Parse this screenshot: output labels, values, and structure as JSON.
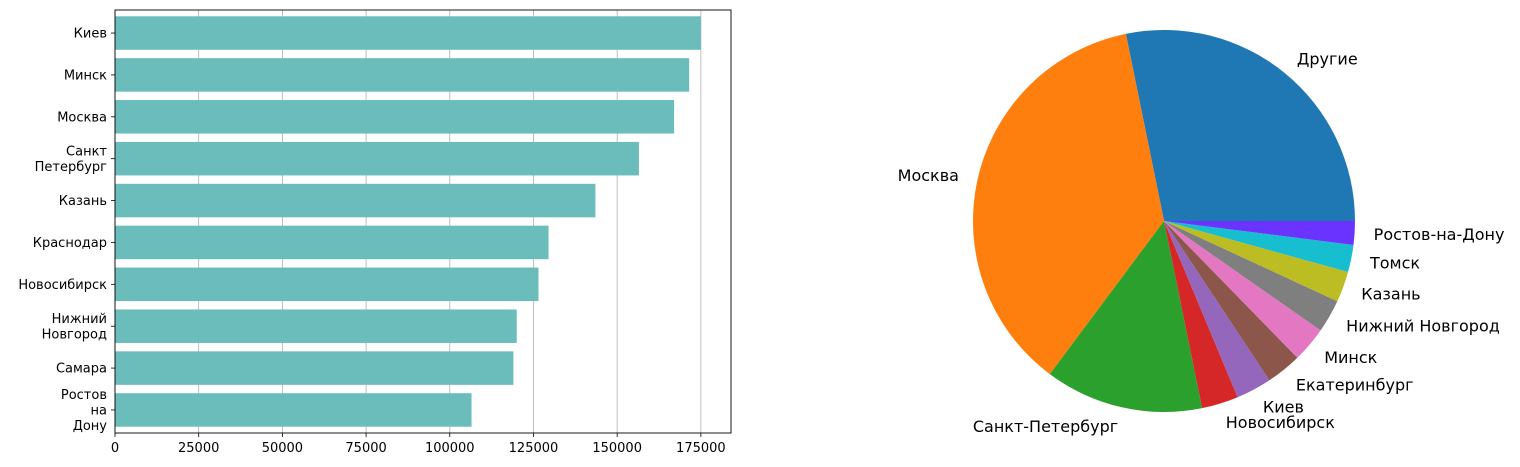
{
  "chart_data": [
    {
      "type": "bar",
      "orientation": "horizontal",
      "categories": [
        [
          "Киев"
        ],
        [
          "Минск"
        ],
        [
          "Москва"
        ],
        [
          "Санкт",
          "Петербург"
        ],
        [
          "Казань"
        ],
        [
          "Краснодар"
        ],
        [
          "Новосибирск"
        ],
        [
          "Нижний",
          "Новгород"
        ],
        [
          "Самара"
        ],
        [
          "Ростов",
          "на",
          "Дону"
        ]
      ],
      "values": [
        175000,
        171500,
        167000,
        156500,
        143500,
        129500,
        126500,
        120000,
        119000,
        106500
      ],
      "xticks": [
        "0",
        "25000",
        "50000",
        "75000",
        "100000",
        "125000",
        "150000",
        "175000"
      ],
      "xtick_values": [
        0,
        25000,
        50000,
        75000,
        100000,
        125000,
        150000,
        175000
      ],
      "xlim": [
        0,
        184000
      ],
      "grid": "x",
      "bar_color": "#6bbdbb",
      "title": "",
      "xlabel": "",
      "ylabel": ""
    },
    {
      "type": "pie",
      "slices": [
        {
          "label": "Другие",
          "value": 28.2,
          "color": "#1f77b4"
        },
        {
          "label": "Москва",
          "value": 36.6,
          "color": "#ff7f0e"
        },
        {
          "label": "Санкт-Петербург",
          "value": 13.4,
          "color": "#2ca02c"
        },
        {
          "label": "Новосибирск",
          "value": 3.1,
          "color": "#d62728"
        },
        {
          "label": "Киев",
          "value": 3.0,
          "color": "#9467bd"
        },
        {
          "label": "Екатеринбург",
          "value": 3.0,
          "color": "#8c564b"
        },
        {
          "label": "Минск",
          "value": 3.0,
          "color": "#e377c2"
        },
        {
          "label": "Нижний Новгород",
          "value": 2.8,
          "color": "#7f7f7f"
        },
        {
          "label": "Казань",
          "value": 2.6,
          "color": "#bcbd22"
        },
        {
          "label": "Томск",
          "value": 2.3,
          "color": "#17becf"
        },
        {
          "label": "Ростов-на-Дону",
          "value": 2.0,
          "color": "#6a33ff"
        }
      ],
      "start_angle": "90deg (counter-clockwise)",
      "title": ""
    }
  ]
}
